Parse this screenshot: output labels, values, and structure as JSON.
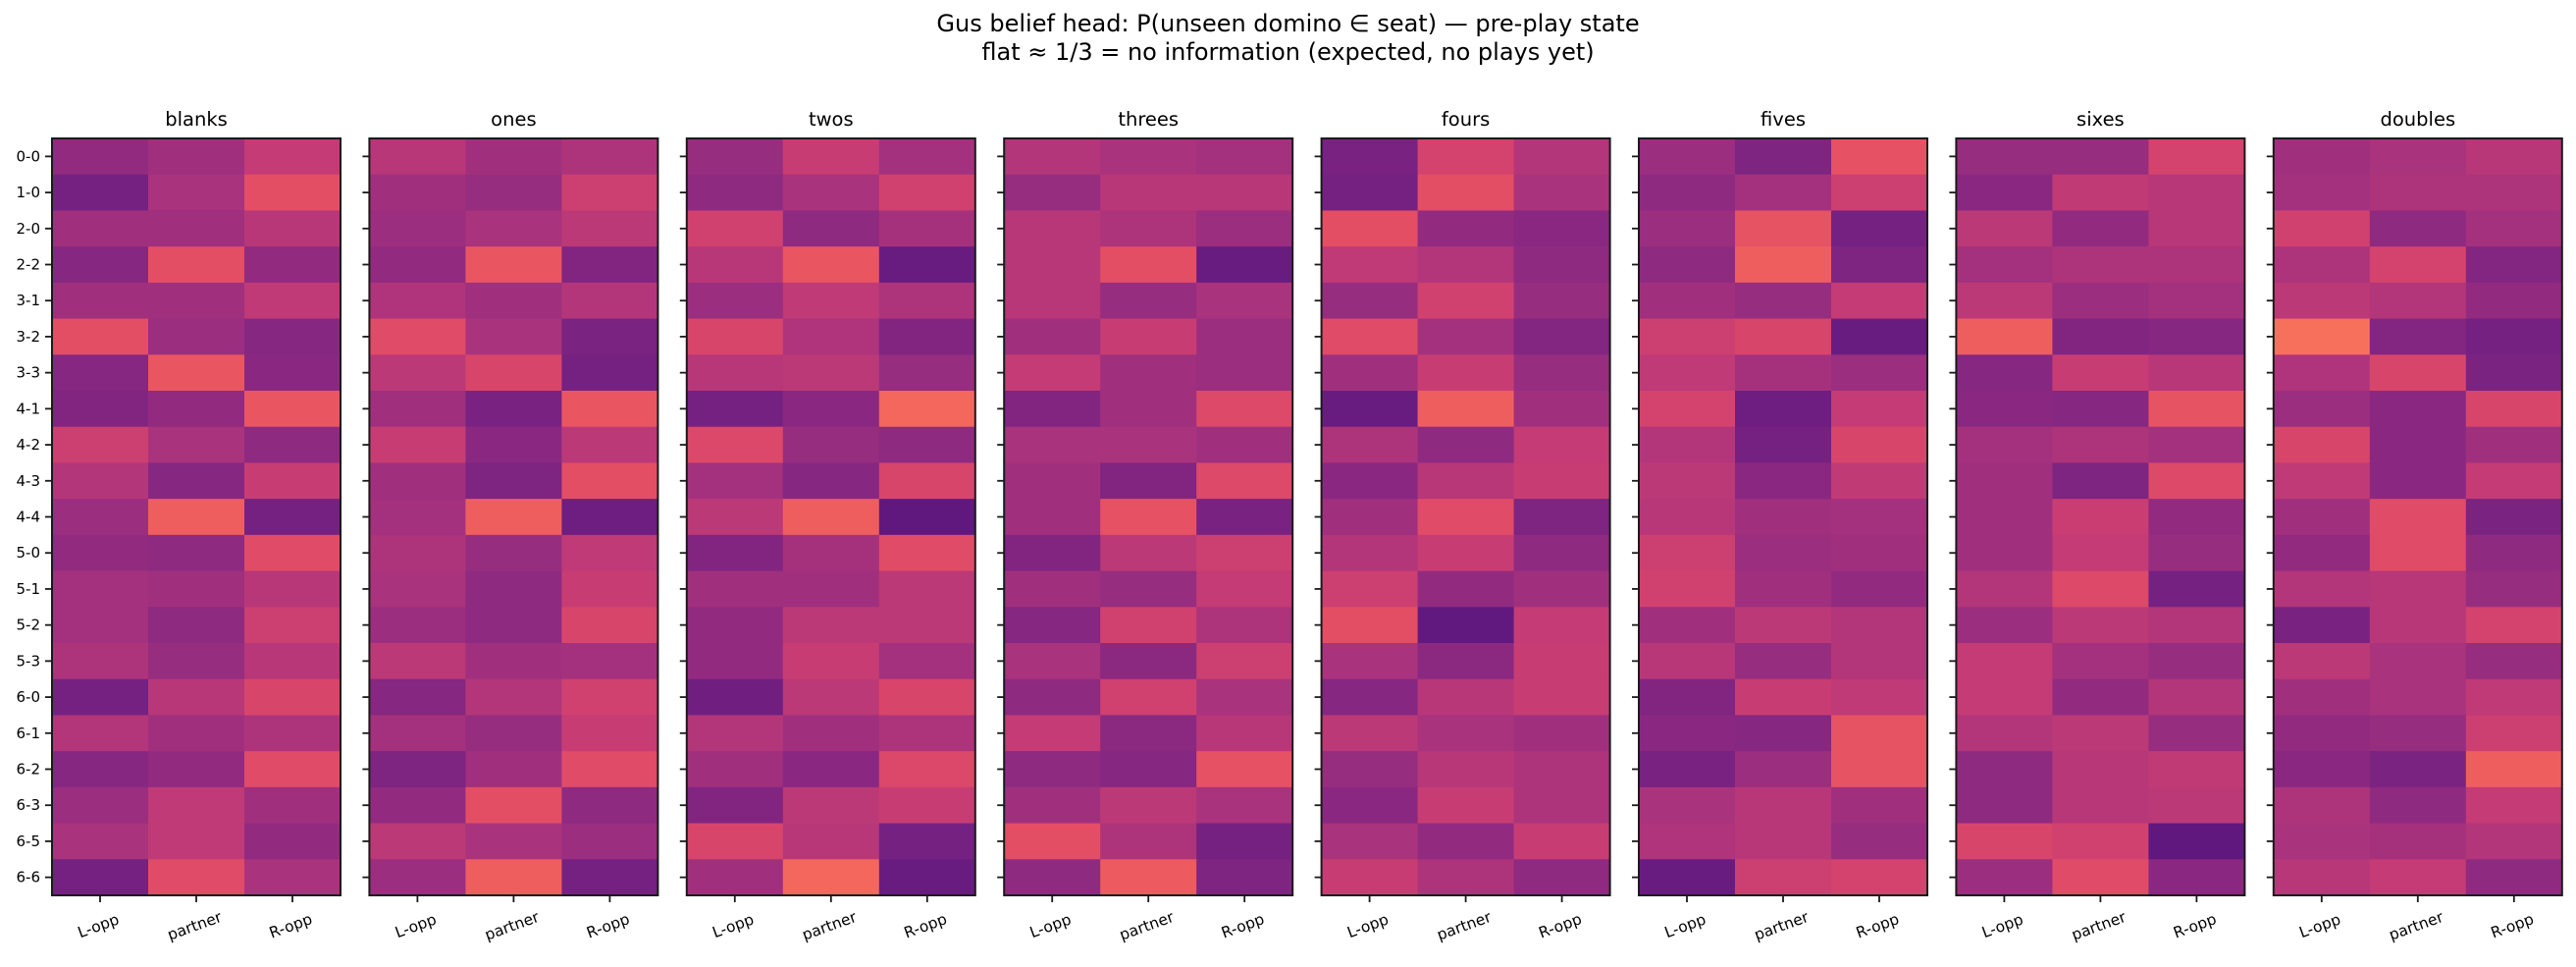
{
  "figure": {
    "title_line1": "Gus belief head: P(unseen domino ∈ seat) — pre-play state",
    "title_line2": "flat ≈ 1/3 = no information (expected, no plays yet)"
  },
  "chart_data": {
    "type": "heatmap",
    "title": "Gus belief head: P(unseen domino ∈ seat) — pre-play state\nflat ≈ 1/3 = no information (expected, no plays yet)",
    "colormap": "magma",
    "color_range": [
      0.27,
      0.41
    ],
    "colorbar": false,
    "grid": false,
    "rows": [
      "0-0",
      "1-0",
      "2-0",
      "2-2",
      "3-1",
      "3-2",
      "3-3",
      "4-1",
      "4-2",
      "4-3",
      "4-4",
      "5-0",
      "5-1",
      "5-2",
      "5-3",
      "6-0",
      "6-1",
      "6-2",
      "6-3",
      "6-5",
      "6-6"
    ],
    "columns": [
      "L-opp",
      "partner",
      "R-opp"
    ],
    "panels": [
      {
        "title": "blanks",
        "values": [
          [
            0.315,
            0.326,
            0.354
          ],
          [
            0.291,
            0.333,
            0.382
          ],
          [
            0.326,
            0.326,
            0.343
          ],
          [
            0.305,
            0.382,
            0.315
          ],
          [
            0.326,
            0.326,
            0.35
          ],
          [
            0.382,
            0.322,
            0.305
          ],
          [
            0.305,
            0.389,
            0.308
          ],
          [
            0.301,
            0.315,
            0.389
          ],
          [
            0.361,
            0.333,
            0.312
          ],
          [
            0.34,
            0.305,
            0.357
          ],
          [
            0.323,
            0.396,
            0.291
          ],
          [
            0.315,
            0.312,
            0.379
          ],
          [
            0.329,
            0.326,
            0.343
          ],
          [
            0.329,
            0.312,
            0.361
          ],
          [
            0.336,
            0.319,
            0.343
          ],
          [
            0.291,
            0.343,
            0.371
          ],
          [
            0.34,
            0.326,
            0.336
          ],
          [
            0.305,
            0.315,
            0.379
          ],
          [
            0.322,
            0.35,
            0.326
          ],
          [
            0.333,
            0.35,
            0.315
          ],
          [
            0.291,
            0.379,
            0.333
          ]
        ]
      },
      {
        "title": "ones",
        "values": [
          [
            0.343,
            0.326,
            0.336
          ],
          [
            0.326,
            0.319,
            0.361
          ],
          [
            0.323,
            0.333,
            0.347
          ],
          [
            0.315,
            0.389,
            0.301
          ],
          [
            0.337,
            0.326,
            0.34
          ],
          [
            0.379,
            0.333,
            0.295
          ],
          [
            0.347,
            0.371,
            0.291
          ],
          [
            0.326,
            0.294,
            0.389
          ],
          [
            0.357,
            0.308,
            0.347
          ],
          [
            0.326,
            0.298,
            0.382
          ],
          [
            0.329,
            0.396,
            0.284
          ],
          [
            0.336,
            0.319,
            0.35
          ],
          [
            0.333,
            0.312,
            0.357
          ],
          [
            0.323,
            0.312,
            0.371
          ],
          [
            0.347,
            0.326,
            0.329
          ],
          [
            0.305,
            0.34,
            0.364
          ],
          [
            0.329,
            0.319,
            0.357
          ],
          [
            0.298,
            0.326,
            0.379
          ],
          [
            0.315,
            0.382,
            0.312
          ],
          [
            0.347,
            0.333,
            0.322
          ],
          [
            0.322,
            0.396,
            0.291
          ]
        ]
      },
      {
        "title": "twos",
        "values": [
          [
            0.319,
            0.357,
            0.329
          ],
          [
            0.312,
            0.333,
            0.364
          ],
          [
            0.364,
            0.312,
            0.33
          ],
          [
            0.343,
            0.389,
            0.281
          ],
          [
            0.322,
            0.35,
            0.336
          ],
          [
            0.371,
            0.337,
            0.301
          ],
          [
            0.343,
            0.347,
            0.319
          ],
          [
            0.291,
            0.308,
            0.403
          ],
          [
            0.375,
            0.319,
            0.312
          ],
          [
            0.329,
            0.305,
            0.371
          ],
          [
            0.347,
            0.396,
            0.273
          ],
          [
            0.301,
            0.33,
            0.379
          ],
          [
            0.326,
            0.326,
            0.347
          ],
          [
            0.315,
            0.347,
            0.347
          ],
          [
            0.315,
            0.357,
            0.329
          ],
          [
            0.287,
            0.347,
            0.371
          ],
          [
            0.34,
            0.326,
            0.336
          ],
          [
            0.326,
            0.308,
            0.375
          ],
          [
            0.301,
            0.347,
            0.357
          ],
          [
            0.371,
            0.343,
            0.291
          ],
          [
            0.326,
            0.403,
            0.281
          ]
        ]
      },
      {
        "title": "threes",
        "values": [
          [
            0.34,
            0.333,
            0.329
          ],
          [
            0.319,
            0.344,
            0.343
          ],
          [
            0.344,
            0.336,
            0.322
          ],
          [
            0.343,
            0.382,
            0.281
          ],
          [
            0.344,
            0.319,
            0.333
          ],
          [
            0.326,
            0.357,
            0.322
          ],
          [
            0.354,
            0.326,
            0.322
          ],
          [
            0.301,
            0.326,
            0.376
          ],
          [
            0.333,
            0.333,
            0.326
          ],
          [
            0.326,
            0.301,
            0.376
          ],
          [
            0.326,
            0.385,
            0.294
          ],
          [
            0.301,
            0.347,
            0.361
          ],
          [
            0.326,
            0.319,
            0.354
          ],
          [
            0.305,
            0.365,
            0.336
          ],
          [
            0.333,
            0.309,
            0.361
          ],
          [
            0.312,
            0.364,
            0.333
          ],
          [
            0.354,
            0.309,
            0.344
          ],
          [
            0.312,
            0.305,
            0.385
          ],
          [
            0.326,
            0.347,
            0.333
          ],
          [
            0.382,
            0.336,
            0.291
          ],
          [
            0.312,
            0.393,
            0.298
          ]
        ]
      },
      {
        "title": "fours",
        "values": [
          [
            0.294,
            0.368,
            0.34
          ],
          [
            0.291,
            0.382,
            0.333
          ],
          [
            0.382,
            0.315,
            0.308
          ],
          [
            0.35,
            0.34,
            0.312
          ],
          [
            0.319,
            0.364,
            0.319
          ],
          [
            0.379,
            0.329,
            0.302
          ],
          [
            0.326,
            0.357,
            0.319
          ],
          [
            0.281,
            0.396,
            0.326
          ],
          [
            0.336,
            0.312,
            0.354
          ],
          [
            0.308,
            0.344,
            0.357
          ],
          [
            0.326,
            0.379,
            0.298
          ],
          [
            0.34,
            0.357,
            0.312
          ],
          [
            0.361,
            0.315,
            0.326
          ],
          [
            0.382,
            0.274,
            0.354
          ],
          [
            0.333,
            0.309,
            0.357
          ],
          [
            0.305,
            0.344,
            0.357
          ],
          [
            0.347,
            0.333,
            0.326
          ],
          [
            0.319,
            0.344,
            0.336
          ],
          [
            0.308,
            0.357,
            0.336
          ],
          [
            0.333,
            0.315,
            0.357
          ],
          [
            0.357,
            0.336,
            0.312
          ]
        ]
      },
      {
        "title": "fives",
        "values": [
          [
            0.322,
            0.298,
            0.385
          ],
          [
            0.312,
            0.329,
            0.361
          ],
          [
            0.322,
            0.386,
            0.291
          ],
          [
            0.312,
            0.396,
            0.298
          ],
          [
            0.326,
            0.319,
            0.354
          ],
          [
            0.361,
            0.371,
            0.281
          ],
          [
            0.35,
            0.33,
            0.322
          ],
          [
            0.368,
            0.284,
            0.354
          ],
          [
            0.34,
            0.291,
            0.371
          ],
          [
            0.347,
            0.308,
            0.351
          ],
          [
            0.343,
            0.326,
            0.329
          ],
          [
            0.361,
            0.322,
            0.326
          ],
          [
            0.365,
            0.326,
            0.315
          ],
          [
            0.326,
            0.347,
            0.34
          ],
          [
            0.344,
            0.319,
            0.34
          ],
          [
            0.301,
            0.357,
            0.35
          ],
          [
            0.308,
            0.305,
            0.386
          ],
          [
            0.294,
            0.322,
            0.386
          ],
          [
            0.333,
            0.344,
            0.326
          ],
          [
            0.337,
            0.343,
            0.319
          ],
          [
            0.281,
            0.361,
            0.368
          ]
        ]
      },
      {
        "title": "sixes",
        "values": [
          [
            0.319,
            0.319,
            0.368
          ],
          [
            0.308,
            0.351,
            0.343
          ],
          [
            0.347,
            0.315,
            0.343
          ],
          [
            0.329,
            0.336,
            0.336
          ],
          [
            0.347,
            0.323,
            0.329
          ],
          [
            0.396,
            0.301,
            0.305
          ],
          [
            0.305,
            0.357,
            0.343
          ],
          [
            0.308,
            0.305,
            0.386
          ],
          [
            0.329,
            0.336,
            0.329
          ],
          [
            0.326,
            0.298,
            0.376
          ],
          [
            0.326,
            0.358,
            0.315
          ],
          [
            0.326,
            0.354,
            0.319
          ],
          [
            0.34,
            0.376,
            0.291
          ],
          [
            0.322,
            0.347,
            0.34
          ],
          [
            0.354,
            0.329,
            0.319
          ],
          [
            0.354,
            0.315,
            0.34
          ],
          [
            0.34,
            0.347,
            0.319
          ],
          [
            0.312,
            0.343,
            0.351
          ],
          [
            0.312,
            0.343,
            0.347
          ],
          [
            0.371,
            0.364,
            0.273
          ],
          [
            0.322,
            0.379,
            0.308
          ]
        ]
      },
      {
        "title": "doubles",
        "values": [
          [
            0.326,
            0.333,
            0.343
          ],
          [
            0.329,
            0.336,
            0.336
          ],
          [
            0.365,
            0.312,
            0.329
          ],
          [
            0.336,
            0.368,
            0.302
          ],
          [
            0.347,
            0.34,
            0.315
          ],
          [
            0.41,
            0.302,
            0.291
          ],
          [
            0.337,
            0.371,
            0.295
          ],
          [
            0.322,
            0.308,
            0.371
          ],
          [
            0.371,
            0.308,
            0.326
          ],
          [
            0.35,
            0.308,
            0.354
          ],
          [
            0.326,
            0.379,
            0.295
          ],
          [
            0.315,
            0.379,
            0.312
          ],
          [
            0.34,
            0.343,
            0.319
          ],
          [
            0.294,
            0.343,
            0.368
          ],
          [
            0.347,
            0.333,
            0.319
          ],
          [
            0.326,
            0.333,
            0.35
          ],
          [
            0.315,
            0.319,
            0.361
          ],
          [
            0.308,
            0.295,
            0.396
          ],
          [
            0.336,
            0.312,
            0.354
          ],
          [
            0.333,
            0.33,
            0.34
          ],
          [
            0.343,
            0.354,
            0.312
          ]
        ]
      }
    ]
  }
}
